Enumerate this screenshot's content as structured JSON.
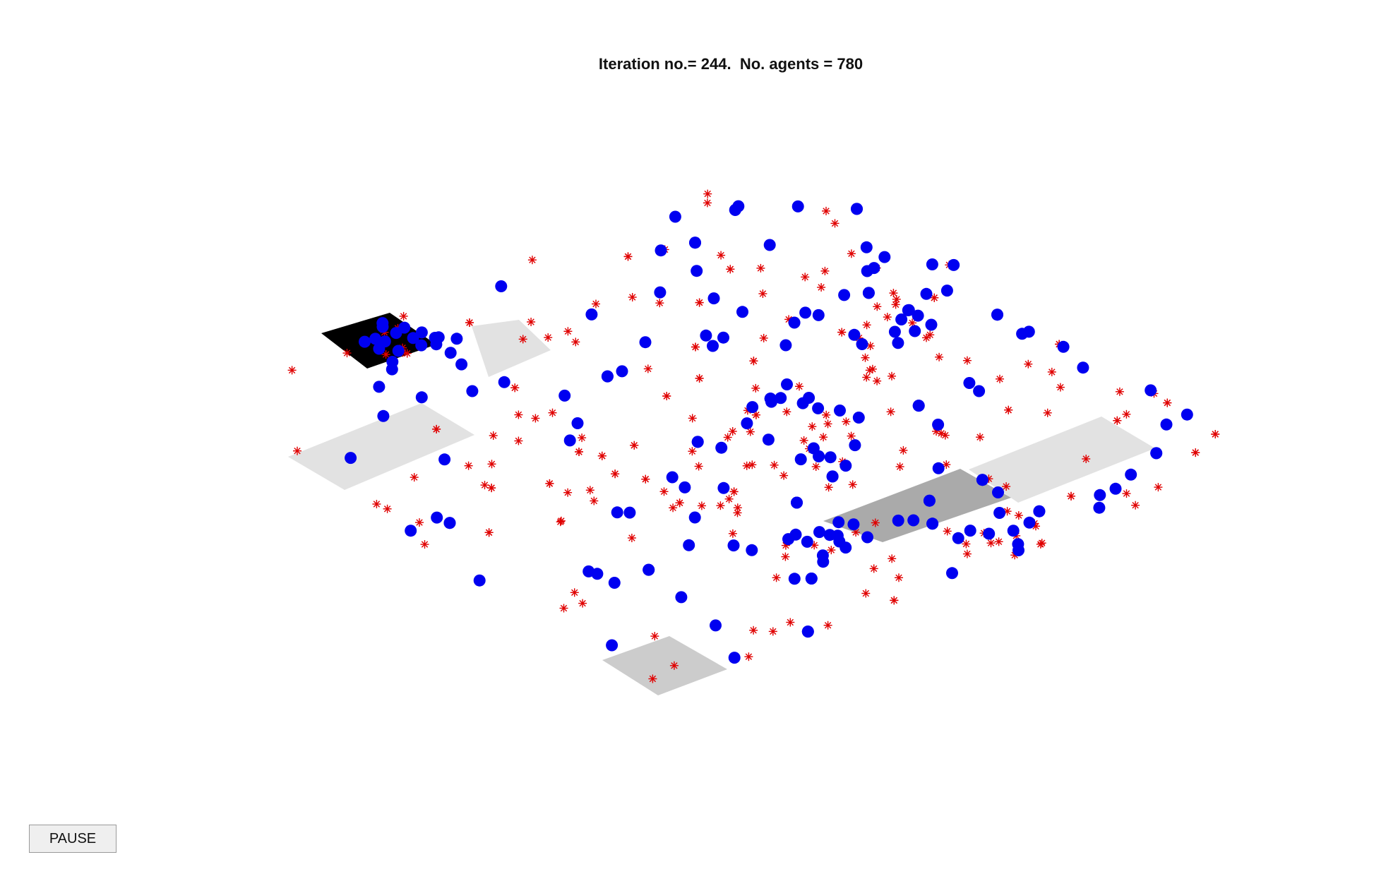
{
  "title": {
    "prefix": "Iteration no.= ",
    "iteration": "244",
    "middle": ".  No. agents = ",
    "agents": "780"
  },
  "controls": {
    "pause_label": "PAUSE"
  },
  "colors": {
    "agent_blue": "#0000f0",
    "agent_red": "#e00000",
    "zone_black": "#000000",
    "zone_dark_gray": "#aaaaaa",
    "zone_mid_gray": "#cccccc",
    "zone_light_gray": "#e2e2e2"
  },
  "zones": [
    {
      "name": "zone-black-northwest",
      "shade": "zone_black"
    },
    {
      "name": "zone-light-west",
      "shade": "zone_light_gray"
    },
    {
      "name": "zone-light-north",
      "shade": "zone_light_gray"
    },
    {
      "name": "zone-light-east",
      "shade": "zone_light_gray"
    },
    {
      "name": "zone-dark-east",
      "shade": "zone_dark_gray"
    },
    {
      "name": "zone-mid-south",
      "shade": "zone_mid_gray"
    }
  ],
  "legend_note": "",
  "seed": 244
}
